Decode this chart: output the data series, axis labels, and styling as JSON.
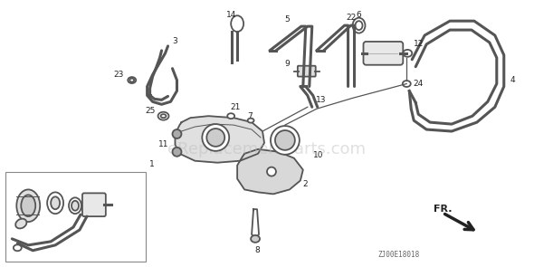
{
  "bg_color": "#ffffff",
  "diagram_color": "#555555",
  "watermark_text": "eReplacementParts.com",
  "watermark_color": "#bbbbbb",
  "watermark_alpha": 0.45,
  "watermark_fontsize": 13,
  "part_number_fontsize": 6.5,
  "fr_label": "FR.",
  "diagram_id": "ZJ00E18018",
  "diagram_id_fontsize": 5.5
}
